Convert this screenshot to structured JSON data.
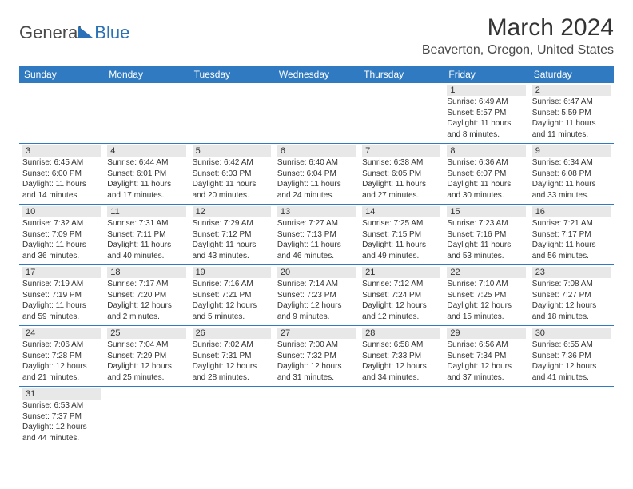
{
  "logo": {
    "general": "General",
    "blue": "Blue"
  },
  "header": {
    "title": "March 2024",
    "location": "Beaverton, Oregon, United States"
  },
  "day_headers": [
    "Sunday",
    "Monday",
    "Tuesday",
    "Wednesday",
    "Thursday",
    "Friday",
    "Saturday"
  ],
  "colors": {
    "header_bg": "#2f7ac0",
    "header_text": "#ffffff",
    "daynum_bg": "#e8e8e8",
    "border": "#2f7ac0",
    "text": "#333333",
    "logo_blue": "#2a71b8"
  },
  "weeks": [
    [
      {
        "day": "",
        "sunrise": "",
        "sunset": "",
        "daylight": ""
      },
      {
        "day": "",
        "sunrise": "",
        "sunset": "",
        "daylight": ""
      },
      {
        "day": "",
        "sunrise": "",
        "sunset": "",
        "daylight": ""
      },
      {
        "day": "",
        "sunrise": "",
        "sunset": "",
        "daylight": ""
      },
      {
        "day": "",
        "sunrise": "",
        "sunset": "",
        "daylight": ""
      },
      {
        "day": "1",
        "sunrise": "Sunrise: 6:49 AM",
        "sunset": "Sunset: 5:57 PM",
        "daylight": "Daylight: 11 hours and 8 minutes."
      },
      {
        "day": "2",
        "sunrise": "Sunrise: 6:47 AM",
        "sunset": "Sunset: 5:59 PM",
        "daylight": "Daylight: 11 hours and 11 minutes."
      }
    ],
    [
      {
        "day": "3",
        "sunrise": "Sunrise: 6:45 AM",
        "sunset": "Sunset: 6:00 PM",
        "daylight": "Daylight: 11 hours and 14 minutes."
      },
      {
        "day": "4",
        "sunrise": "Sunrise: 6:44 AM",
        "sunset": "Sunset: 6:01 PM",
        "daylight": "Daylight: 11 hours and 17 minutes."
      },
      {
        "day": "5",
        "sunrise": "Sunrise: 6:42 AM",
        "sunset": "Sunset: 6:03 PM",
        "daylight": "Daylight: 11 hours and 20 minutes."
      },
      {
        "day": "6",
        "sunrise": "Sunrise: 6:40 AM",
        "sunset": "Sunset: 6:04 PM",
        "daylight": "Daylight: 11 hours and 24 minutes."
      },
      {
        "day": "7",
        "sunrise": "Sunrise: 6:38 AM",
        "sunset": "Sunset: 6:05 PM",
        "daylight": "Daylight: 11 hours and 27 minutes."
      },
      {
        "day": "8",
        "sunrise": "Sunrise: 6:36 AM",
        "sunset": "Sunset: 6:07 PM",
        "daylight": "Daylight: 11 hours and 30 minutes."
      },
      {
        "day": "9",
        "sunrise": "Sunrise: 6:34 AM",
        "sunset": "Sunset: 6:08 PM",
        "daylight": "Daylight: 11 hours and 33 minutes."
      }
    ],
    [
      {
        "day": "10",
        "sunrise": "Sunrise: 7:32 AM",
        "sunset": "Sunset: 7:09 PM",
        "daylight": "Daylight: 11 hours and 36 minutes."
      },
      {
        "day": "11",
        "sunrise": "Sunrise: 7:31 AM",
        "sunset": "Sunset: 7:11 PM",
        "daylight": "Daylight: 11 hours and 40 minutes."
      },
      {
        "day": "12",
        "sunrise": "Sunrise: 7:29 AM",
        "sunset": "Sunset: 7:12 PM",
        "daylight": "Daylight: 11 hours and 43 minutes."
      },
      {
        "day": "13",
        "sunrise": "Sunrise: 7:27 AM",
        "sunset": "Sunset: 7:13 PM",
        "daylight": "Daylight: 11 hours and 46 minutes."
      },
      {
        "day": "14",
        "sunrise": "Sunrise: 7:25 AM",
        "sunset": "Sunset: 7:15 PM",
        "daylight": "Daylight: 11 hours and 49 minutes."
      },
      {
        "day": "15",
        "sunrise": "Sunrise: 7:23 AM",
        "sunset": "Sunset: 7:16 PM",
        "daylight": "Daylight: 11 hours and 53 minutes."
      },
      {
        "day": "16",
        "sunrise": "Sunrise: 7:21 AM",
        "sunset": "Sunset: 7:17 PM",
        "daylight": "Daylight: 11 hours and 56 minutes."
      }
    ],
    [
      {
        "day": "17",
        "sunrise": "Sunrise: 7:19 AM",
        "sunset": "Sunset: 7:19 PM",
        "daylight": "Daylight: 11 hours and 59 minutes."
      },
      {
        "day": "18",
        "sunrise": "Sunrise: 7:17 AM",
        "sunset": "Sunset: 7:20 PM",
        "daylight": "Daylight: 12 hours and 2 minutes."
      },
      {
        "day": "19",
        "sunrise": "Sunrise: 7:16 AM",
        "sunset": "Sunset: 7:21 PM",
        "daylight": "Daylight: 12 hours and 5 minutes."
      },
      {
        "day": "20",
        "sunrise": "Sunrise: 7:14 AM",
        "sunset": "Sunset: 7:23 PM",
        "daylight": "Daylight: 12 hours and 9 minutes."
      },
      {
        "day": "21",
        "sunrise": "Sunrise: 7:12 AM",
        "sunset": "Sunset: 7:24 PM",
        "daylight": "Daylight: 12 hours and 12 minutes."
      },
      {
        "day": "22",
        "sunrise": "Sunrise: 7:10 AM",
        "sunset": "Sunset: 7:25 PM",
        "daylight": "Daylight: 12 hours and 15 minutes."
      },
      {
        "day": "23",
        "sunrise": "Sunrise: 7:08 AM",
        "sunset": "Sunset: 7:27 PM",
        "daylight": "Daylight: 12 hours and 18 minutes."
      }
    ],
    [
      {
        "day": "24",
        "sunrise": "Sunrise: 7:06 AM",
        "sunset": "Sunset: 7:28 PM",
        "daylight": "Daylight: 12 hours and 21 minutes."
      },
      {
        "day": "25",
        "sunrise": "Sunrise: 7:04 AM",
        "sunset": "Sunset: 7:29 PM",
        "daylight": "Daylight: 12 hours and 25 minutes."
      },
      {
        "day": "26",
        "sunrise": "Sunrise: 7:02 AM",
        "sunset": "Sunset: 7:31 PM",
        "daylight": "Daylight: 12 hours and 28 minutes."
      },
      {
        "day": "27",
        "sunrise": "Sunrise: 7:00 AM",
        "sunset": "Sunset: 7:32 PM",
        "daylight": "Daylight: 12 hours and 31 minutes."
      },
      {
        "day": "28",
        "sunrise": "Sunrise: 6:58 AM",
        "sunset": "Sunset: 7:33 PM",
        "daylight": "Daylight: 12 hours and 34 minutes."
      },
      {
        "day": "29",
        "sunrise": "Sunrise: 6:56 AM",
        "sunset": "Sunset: 7:34 PM",
        "daylight": "Daylight: 12 hours and 37 minutes."
      },
      {
        "day": "30",
        "sunrise": "Sunrise: 6:55 AM",
        "sunset": "Sunset: 7:36 PM",
        "daylight": "Daylight: 12 hours and 41 minutes."
      }
    ],
    [
      {
        "day": "31",
        "sunrise": "Sunrise: 6:53 AM",
        "sunset": "Sunset: 7:37 PM",
        "daylight": "Daylight: 12 hours and 44 minutes."
      },
      {
        "day": "",
        "sunrise": "",
        "sunset": "",
        "daylight": ""
      },
      {
        "day": "",
        "sunrise": "",
        "sunset": "",
        "daylight": ""
      },
      {
        "day": "",
        "sunrise": "",
        "sunset": "",
        "daylight": ""
      },
      {
        "day": "",
        "sunrise": "",
        "sunset": "",
        "daylight": ""
      },
      {
        "day": "",
        "sunrise": "",
        "sunset": "",
        "daylight": ""
      },
      {
        "day": "",
        "sunrise": "",
        "sunset": "",
        "daylight": ""
      }
    ]
  ]
}
